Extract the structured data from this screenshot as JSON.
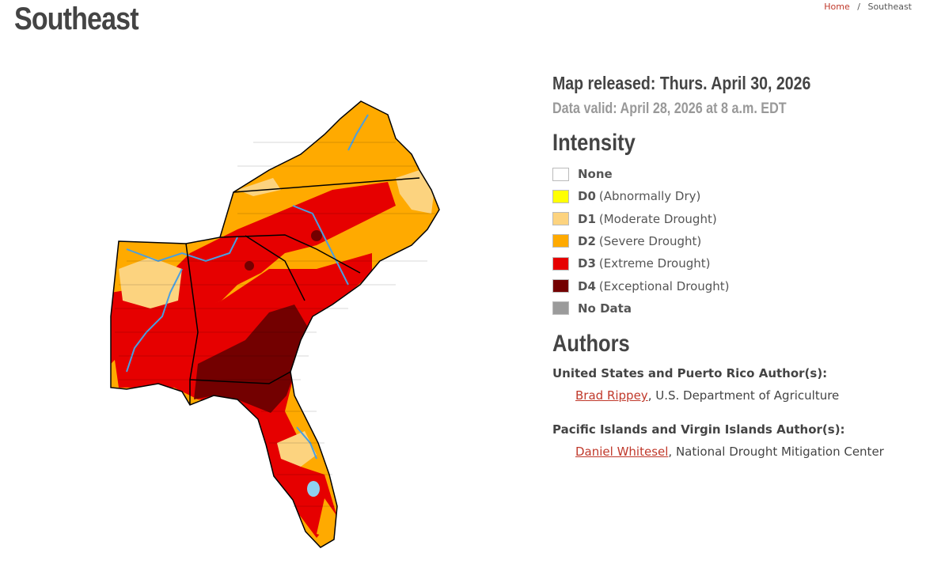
{
  "header": {
    "title": "Southeast",
    "breadcrumb": {
      "home": "Home",
      "separator": "/",
      "current": "Southeast"
    }
  },
  "map_info": {
    "released": "Map released: Thurs. April 30, 2026",
    "valid": "Data valid: April 28, 2026 at 8 a.m. EDT"
  },
  "legend": {
    "title": "Intensity",
    "items": [
      {
        "code": "None",
        "color": "#ffffff"
      },
      {
        "code": "D0",
        "description": "(Abnormally Dry)",
        "color": "#ffff00"
      },
      {
        "code": "D1",
        "description": "(Moderate Drought)",
        "color": "#fcd37f"
      },
      {
        "code": "D2",
        "description": "(Severe Drought)",
        "color": "#ffaa00"
      },
      {
        "code": "D3",
        "description": "(Extreme Drought)",
        "color": "#e60000"
      },
      {
        "code": "D4",
        "description": "(Exceptional Drought)",
        "color": "#730000"
      },
      {
        "code": "No Data",
        "color": "#9b9b9b"
      }
    ]
  },
  "authors": {
    "title": "Authors",
    "groups": [
      {
        "label": "United States and Puerto Rico Author(s):",
        "authors": [
          {
            "name": "Brad Rippey",
            "affiliation": ", U.S. Department of Agriculture"
          }
        ]
      },
      {
        "label": "Pacific Islands and Virgin Islands Author(s):",
        "authors": [
          {
            "name": "Daniel Whitesel",
            "affiliation": ", National Drought Mitigation Center"
          }
        ]
      }
    ]
  }
}
